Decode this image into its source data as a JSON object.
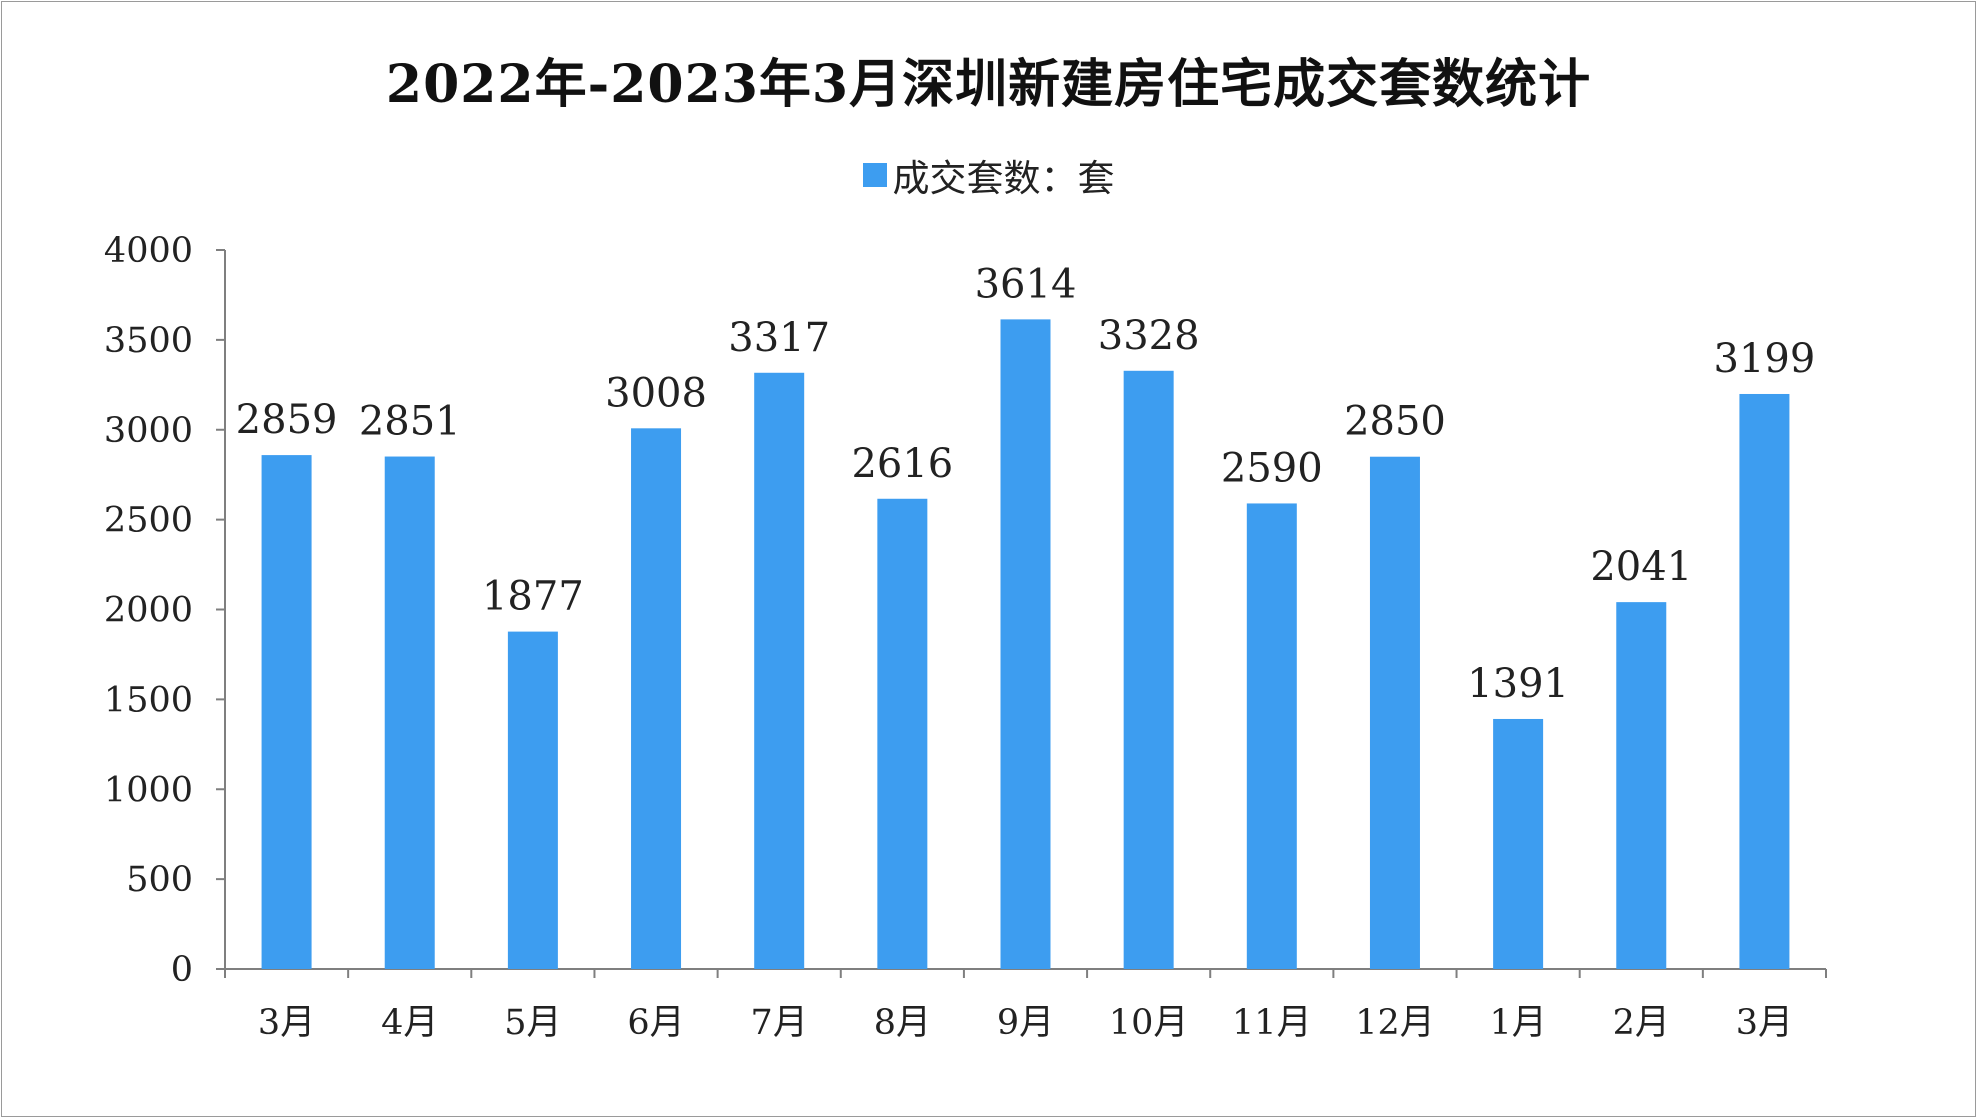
{
  "chart_data": {
    "type": "bar",
    "title": "2022年-2023年3月深圳新建房住宅成交套数统计",
    "categories": [
      "3月",
      "4月",
      "5月",
      "6月",
      "7月",
      "8月",
      "9月",
      "10月",
      "11月",
      "12月",
      "1月",
      "2月",
      "3月"
    ],
    "series": [
      {
        "name": "成交套数：套",
        "values": [
          2859,
          2851,
          1877,
          3008,
          3317,
          2616,
          3614,
          3328,
          2590,
          2850,
          1391,
          2041,
          3199
        ],
        "color": "#3d9df0"
      }
    ],
    "ylim": [
      0,
      4000
    ],
    "yticks": [
      0,
      500,
      1000,
      1500,
      2000,
      2500,
      3000,
      3500,
      4000
    ],
    "grid": false,
    "legend_position": "top-center",
    "data_labels": true
  }
}
